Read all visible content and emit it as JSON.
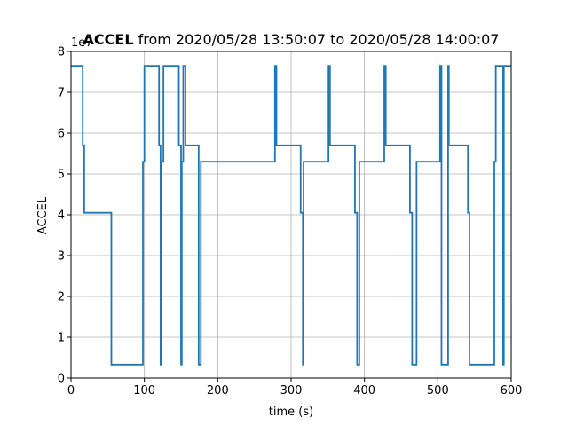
{
  "chart_data": {
    "type": "line",
    "step": true,
    "title": {
      "bold": "ACCEL",
      "rest": " from 2020/05/28 13:50:07 to 2020/05/28 14:00:07"
    },
    "xlabel": "time (s)",
    "ylabel": "ACCEL",
    "y_offset_label": "1e7",
    "xlim": [
      0,
      600
    ],
    "ylim": [
      0,
      8
    ],
    "xticks": [
      0,
      100,
      200,
      300,
      400,
      500,
      600
    ],
    "xtick_labels": [
      "0",
      "100",
      "200",
      "300",
      "400",
      "500",
      "600"
    ],
    "yticks": [
      0,
      1,
      2,
      3,
      4,
      5,
      6,
      7,
      8
    ],
    "ytick_labels": [
      "0",
      "1",
      "2",
      "3",
      "4",
      "5",
      "6",
      "7",
      "8"
    ],
    "grid": true,
    "series": [
      {
        "color": "#1f77b4",
        "x": [
          0,
          16,
          16,
          18,
          18,
          55,
          55,
          98,
          98,
          100,
          100,
          120,
          120,
          122,
          122,
          123,
          123,
          126,
          126,
          147,
          147,
          150,
          150,
          151,
          151,
          153,
          153,
          156,
          156,
          174,
          174,
          177,
          177,
          278,
          278,
          280,
          280,
          313,
          313,
          316,
          316,
          317,
          317,
          351,
          351,
          353,
          353,
          387,
          387,
          390,
          390,
          393,
          393,
          427,
          427,
          429,
          429,
          462,
          462,
          465,
          465,
          471,
          471,
          503,
          503,
          505,
          505,
          514,
          514,
          515,
          515,
          541,
          541,
          543,
          543,
          577,
          577,
          579,
          579,
          589,
          589,
          590,
          590,
          600
        ],
        "values": [
          7.65,
          7.65,
          5.7,
          5.7,
          4.05,
          4.05,
          0.33,
          0.33,
          5.3,
          5.3,
          7.65,
          7.65,
          5.7,
          5.7,
          0.33,
          0.33,
          5.3,
          5.3,
          7.65,
          7.65,
          5.7,
          5.7,
          0.33,
          0.33,
          5.3,
          5.3,
          7.65,
          7.65,
          5.7,
          5.7,
          0.33,
          0.33,
          5.3,
          5.3,
          7.65,
          7.65,
          5.7,
          5.7,
          4.05,
          4.05,
          0.33,
          0.33,
          5.3,
          5.3,
          7.65,
          7.65,
          5.7,
          5.7,
          4.05,
          4.05,
          0.33,
          0.33,
          5.3,
          5.3,
          7.65,
          7.65,
          5.7,
          5.7,
          4.05,
          4.05,
          0.33,
          0.33,
          5.3,
          5.3,
          7.65,
          7.65,
          0.33,
          0.33,
          7.65,
          7.65,
          5.7,
          5.7,
          4.05,
          4.05,
          0.33,
          0.33,
          5.3,
          5.3,
          7.65,
          7.65,
          0.33,
          0.33,
          7.65,
          7.65
        ]
      }
    ]
  }
}
